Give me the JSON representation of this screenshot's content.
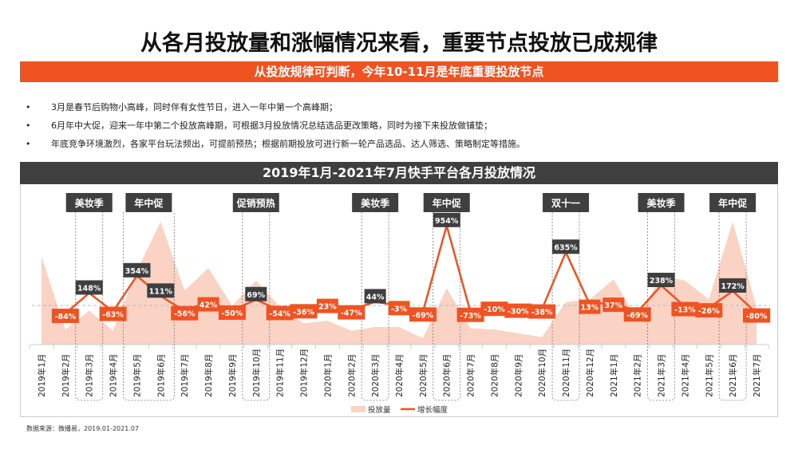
{
  "title": "从各月投放量和涨幅情况来看，重要节点投放已成规律",
  "subtitle": "从投放规律可判断，今年10-11月是年底重要投放节点",
  "bullets": [
    "3月是春节后购物小高峰，同时伴有女性节日，进入一年中第一个高峰期；",
    "6月年中大促，迎来一年中第二个投放高峰期，可根据3月投放情况总结选品更改策略，同时为接下来投放做铺垫；",
    "年底竞争环境激烈，各家平台玩法频出，可提前预热；根据前期投放可进行新一轮产品选品、达人筛选、策略制定等措施。"
  ],
  "bullet_symbol": "•",
  "source": "数据来源：微播易，2019.01-2021.07",
  "colors": {
    "accent": "#f05322",
    "area": "#fbd3c4",
    "dark": "#3f3f3f"
  },
  "chart_data": {
    "type": "area+line",
    "title": "2019年1月-2021年7月快手平台各月投放情况",
    "categories": [
      "2019年1月",
      "2019年2月",
      "2019年3月",
      "2019年4月",
      "2019年5月",
      "2019年6月",
      "2019年7月",
      "2019年8月",
      "2019年9月",
      "2019年10月",
      "2019年11月",
      "2019年12月",
      "2020年1月",
      "2020年2月",
      "2020年3月",
      "2020年4月",
      "2020年5月",
      "2020年6月",
      "2020年7月",
      "2020年8月",
      "2020年9月",
      "2020年10月",
      "2020年11月",
      "2020年12月",
      "2021年1月",
      "2021年2月",
      "2021年3月",
      "2021年4月",
      "2021年5月",
      "2021年6月",
      "2021年7月"
    ],
    "series": [
      {
        "name": "投放量",
        "type": "area",
        "values": [
          70,
          12,
          27,
          11,
          59,
          98,
          43,
          61,
          31,
          51,
          30,
          17,
          19,
          11,
          14,
          14,
          5,
          45,
          13,
          12,
          9,
          6,
          34,
          36,
          52,
          20,
          55,
          51,
          36,
          98,
          30
        ]
      },
      {
        "name": "增长幅度",
        "type": "line",
        "values": [
          null,
          -84,
          148,
          -63,
          354,
          111,
          -56,
          42,
          -50,
          69,
          -54,
          -36,
          23,
          -47,
          44,
          -3,
          -69,
          954,
          -73,
          -10,
          -30,
          -38,
          635,
          13,
          37,
          -69,
          238,
          -13,
          -26,
          172,
          -80
        ],
        "labels": [
          "",
          "-84%",
          "148%",
          "-63%",
          "354%",
          "111%",
          "-56%",
          "42%",
          "-50%",
          "69%",
          "-54%",
          "-36%",
          "23%",
          "-47%",
          "44%",
          "-3%",
          "-69%",
          "954%",
          "-73%",
          "-10%",
          "-30%",
          "-38%",
          "635%",
          "13%",
          "37%",
          "-69%",
          "238%",
          "-13%",
          "-26%",
          "172%",
          "-80%"
        ]
      }
    ],
    "annotations": [
      {
        "label": "美妆季",
        "months": [
          2
        ]
      },
      {
        "label": "年中促",
        "months": [
          4,
          5
        ]
      },
      {
        "label": "促销预热",
        "months": [
          9
        ]
      },
      {
        "label": "美妆季",
        "months": [
          14
        ]
      },
      {
        "label": "年中促",
        "months": [
          17
        ]
      },
      {
        "label": "双十一",
        "months": [
          22
        ]
      },
      {
        "label": "美妆季",
        "months": [
          26
        ]
      },
      {
        "label": "年中促",
        "months": [
          29
        ]
      }
    ],
    "legend": {
      "position": "bottom",
      "items": [
        "投放量",
        "增长幅度"
      ]
    },
    "grid": false
  }
}
